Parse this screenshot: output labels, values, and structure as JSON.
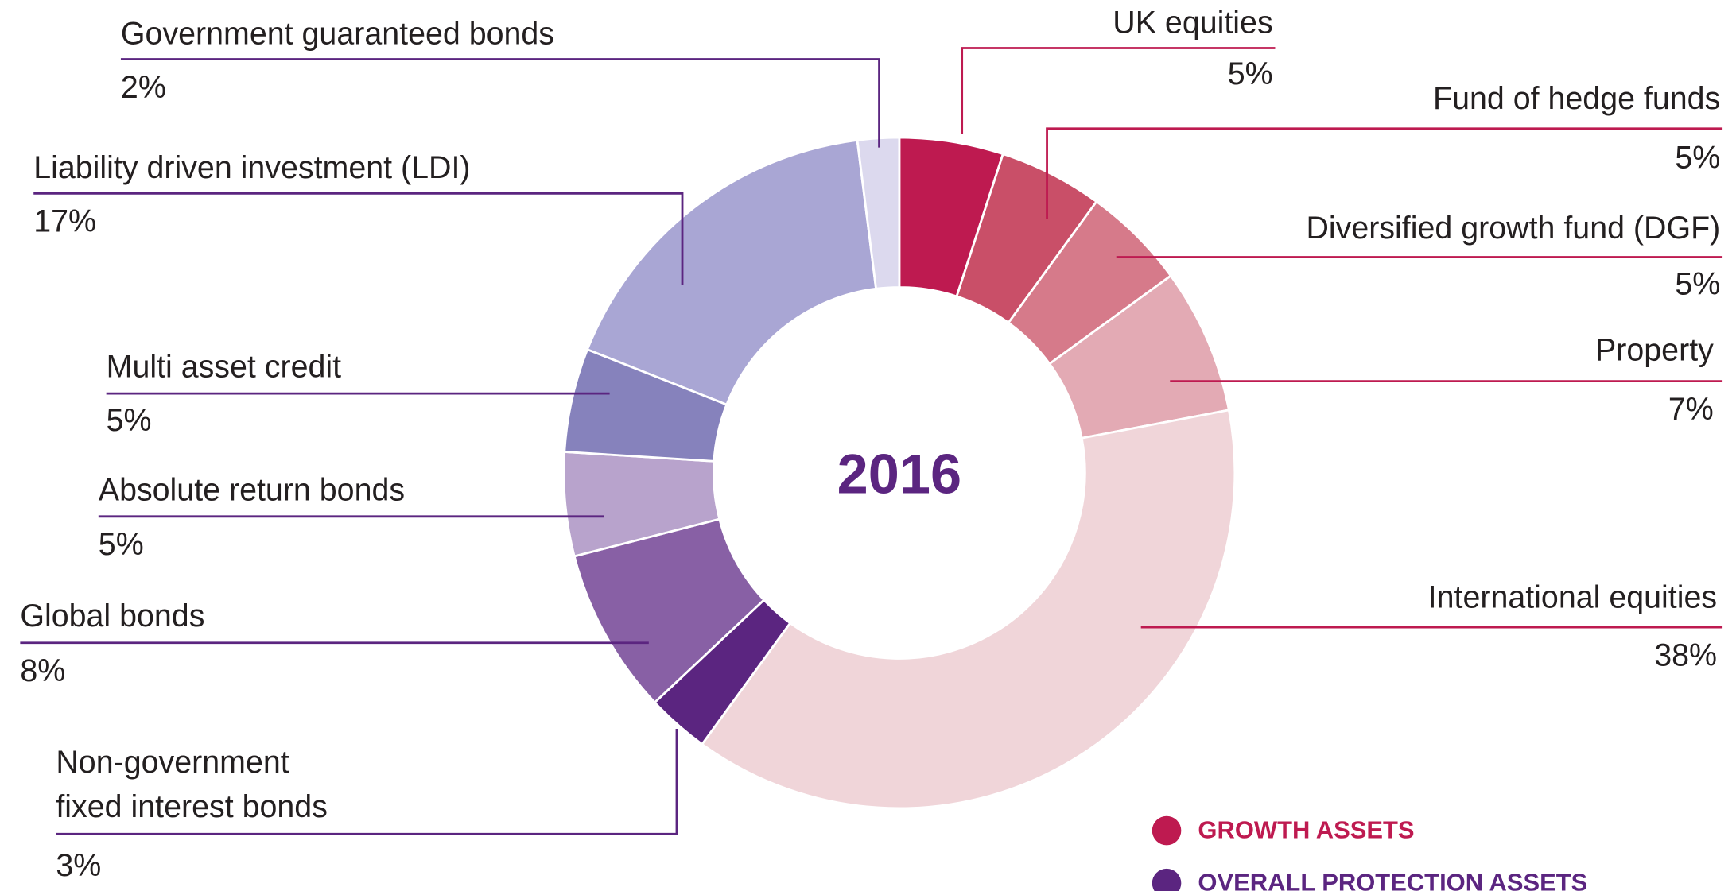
{
  "chart_data": {
    "type": "donut",
    "center_label": "2016",
    "categories": [
      "UK equities",
      "Fund of hedge funds",
      "Diversified growth fund (DGF)",
      "Property",
      "International equities",
      "Non-government\nfixed interest bonds",
      "Global bonds",
      "Absolute return bonds",
      "Multi asset credit",
      "Liability driven investment (LDI)",
      "Government guaranteed bonds"
    ],
    "values": [
      5,
      5,
      5,
      7,
      38,
      3,
      8,
      5,
      5,
      17,
      2
    ],
    "value_labels": [
      "5%",
      "5%",
      "5%",
      "7%",
      "38%",
      "3%",
      "8%",
      "5%",
      "5%",
      "17%",
      "2%"
    ],
    "colors": [
      "#be1a50",
      "#c94f68",
      "#d67a8a",
      "#e3aab4",
      "#f0d5d9",
      "#5b2580",
      "#8860a5",
      "#b8a3cc",
      "#8682bc",
      "#a9a6d4",
      "#dcd9ee"
    ],
    "legend": [
      {
        "name": "GROWTH ASSETS",
        "color": "#be1a50"
      },
      {
        "name": "OVERALL PROTECTION ASSETS",
        "color": "#5b2580"
      }
    ]
  }
}
